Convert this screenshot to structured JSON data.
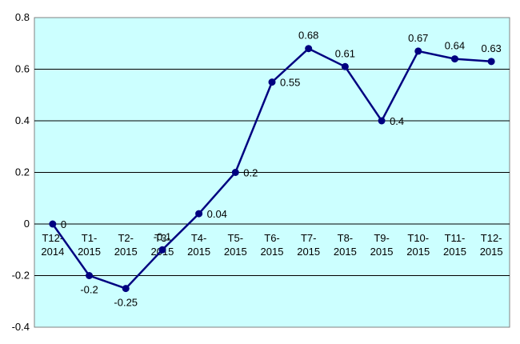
{
  "chart_data": {
    "type": "line",
    "categories": [
      "T12-2014",
      "T1-2015",
      "T2-2015",
      "T3-2015",
      "T4-2015",
      "T5-2015",
      "T6-2015",
      "T7-2015",
      "T8-2015",
      "T9-2015",
      "T10-2015",
      "T11-2015",
      "T12-2015"
    ],
    "category_lines": [
      [
        "T12-",
        "2014"
      ],
      [
        "T1-",
        "2015"
      ],
      [
        "T2-",
        "2015"
      ],
      [
        "T3-",
        "2015"
      ],
      [
        "T4-",
        "2015"
      ],
      [
        "T5-",
        "2015"
      ],
      [
        "T6-",
        "2015"
      ],
      [
        "T7-",
        "2015"
      ],
      [
        "T8-",
        "2015"
      ],
      [
        "T9-",
        "2015"
      ],
      [
        "T10-",
        "2015"
      ],
      [
        "T11-",
        "2015"
      ],
      [
        "T12-",
        "2015"
      ]
    ],
    "values": [
      0,
      -0.2,
      -0.25,
      -0.1,
      0.04,
      0.2,
      0.55,
      0.68,
      0.61,
      0.4,
      0.67,
      0.64,
      0.63
    ],
    "data_labels": [
      "0",
      "-0.2",
      "-0.25",
      "-0.1",
      "0.04",
      "0.2",
      "0.55",
      "0.68",
      "0.61",
      "0.4",
      "0.67",
      "0.64",
      "0.63"
    ],
    "ylim": [
      -0.4,
      0.8
    ],
    "yticks": [
      0.8,
      0.6,
      0.4,
      0.2,
      0,
      -0.2,
      -0.4
    ],
    "ytick_labels": [
      "0.8",
      "0.6",
      "0.4",
      "0.2",
      "0",
      "-0.2",
      "-0.4"
    ],
    "grid": true,
    "title": "",
    "xlabel": "",
    "ylabel": "",
    "colors": {
      "plot_background": "#CCFFFF",
      "line": "#000080",
      "grid": "#000000"
    }
  }
}
